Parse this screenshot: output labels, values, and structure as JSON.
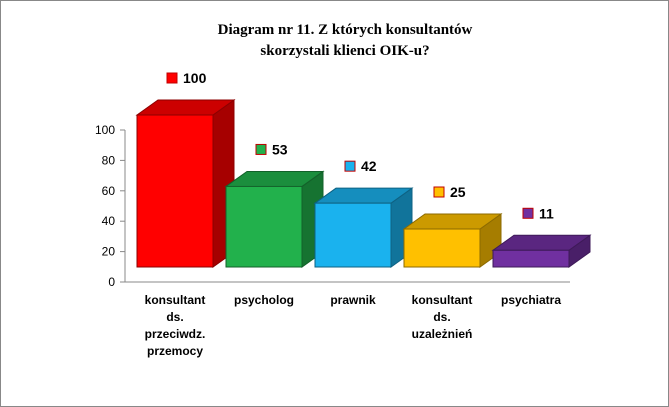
{
  "chart_data": {
    "type": "bar3d",
    "title": "Diagram nr 11. Z których konsultantów skorzystali klienci OIK-u?",
    "categories": [
      "konsultant ds. przeciwdz. przemocy",
      "psycholog",
      "prawnik",
      "konsultant ds. uzależnień",
      "psychiatra"
    ],
    "values": [
      100,
      53,
      42,
      25,
      11
    ],
    "colors": [
      "#ff0000",
      "#22b14c",
      "#1ab2ee",
      "#ffc000",
      "#7030a0"
    ],
    "ylim": [
      0,
      100
    ],
    "yticks": [
      0,
      20,
      40,
      60,
      80,
      100
    ]
  }
}
